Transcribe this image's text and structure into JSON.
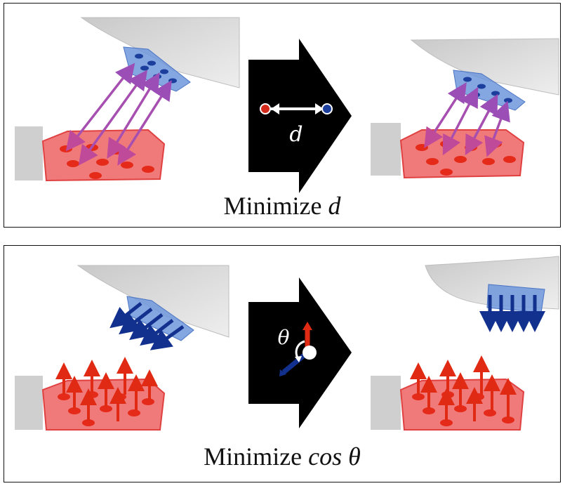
{
  "top_panel": {
    "caption_prefix": "Minimize ",
    "caption_variable": "d",
    "arrow_symbol": "d"
  },
  "bottom_panel": {
    "caption_prefix": "Minimize ",
    "caption_variable": "cos θ",
    "arrow_symbol": "θ"
  },
  "colors": {
    "red_contact": "#e52a1a",
    "red_region": "#f07a7a",
    "blue_contact": "#1c3f9e",
    "blue_region": "#6e96dc",
    "purple_arrow": "#a055b8",
    "gray_object": "#d6d6d6"
  }
}
